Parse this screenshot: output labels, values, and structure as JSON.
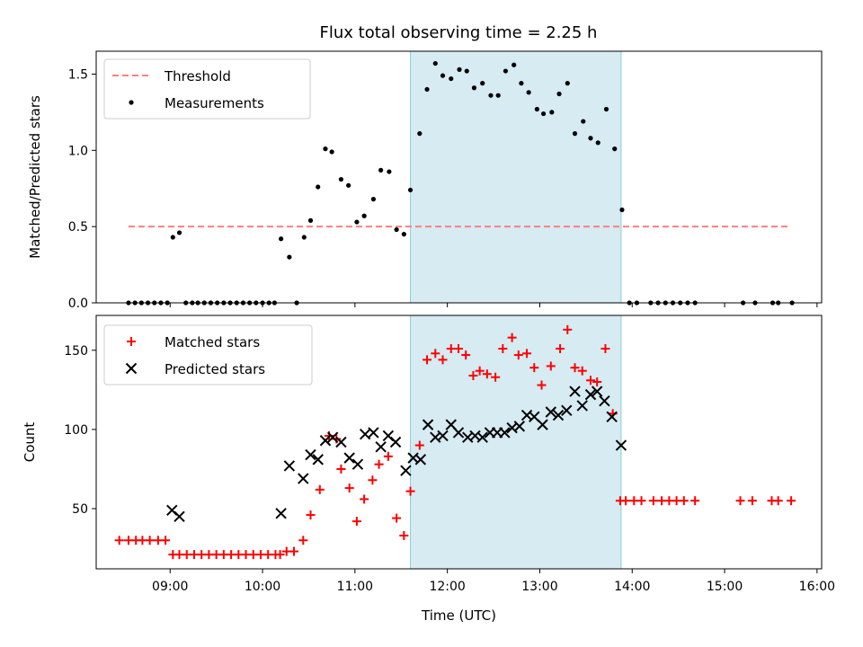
{
  "title": "Flux total observing time = 2.25 h",
  "colors": {
    "threshold": "#ff7f7f",
    "measurement": "#000000",
    "matched": "#ff0000",
    "predicted": "#000000",
    "shade": "#add8e6"
  },
  "chart_data": [
    {
      "type": "scatter",
      "ylabel": "Matched/Predicted stars",
      "xlim": [
        8.2,
        16.05
      ],
      "ylim": [
        0,
        1.65
      ],
      "yticks": [
        0.0,
        0.5,
        1.0,
        1.5
      ],
      "ytick_labels": [
        "0.0",
        "0.5",
        "1.0",
        "1.5"
      ],
      "shaded_span": [
        11.6,
        13.88
      ],
      "legend": [
        "Threshold",
        "Measurements"
      ],
      "legend_position": "top-left",
      "threshold": {
        "name": "Threshold",
        "x_range": [
          8.55,
          15.7
        ],
        "value": 0.5
      },
      "series": [
        {
          "name": "Measurements",
          "points": [
            [
              8.55,
              0
            ],
            [
              8.62,
              0
            ],
            [
              8.69,
              0
            ],
            [
              8.76,
              0
            ],
            [
              8.83,
              0
            ],
            [
              8.9,
              0
            ],
            [
              8.97,
              0
            ],
            [
              9.03,
              0.43
            ],
            [
              9.1,
              0.46
            ],
            [
              9.17,
              0
            ],
            [
              9.24,
              0
            ],
            [
              9.3,
              0
            ],
            [
              9.37,
              0
            ],
            [
              9.44,
              0
            ],
            [
              9.51,
              0
            ],
            [
              9.58,
              0
            ],
            [
              9.65,
              0
            ],
            [
              9.72,
              0
            ],
            [
              9.79,
              0
            ],
            [
              9.86,
              0
            ],
            [
              9.93,
              0
            ],
            [
              10.0,
              0
            ],
            [
              10.07,
              0
            ],
            [
              10.13,
              0
            ],
            [
              10.2,
              0.42
            ],
            [
              10.29,
              0.3
            ],
            [
              10.37,
              0
            ],
            [
              10.45,
              0.43
            ],
            [
              10.52,
              0.54
            ],
            [
              10.6,
              0.76
            ],
            [
              10.68,
              1.01
            ],
            [
              10.75,
              0.99
            ],
            [
              10.85,
              0.81
            ],
            [
              10.93,
              0.77
            ],
            [
              11.02,
              0.53
            ],
            [
              11.1,
              0.57
            ],
            [
              11.2,
              0.68
            ],
            [
              11.28,
              0.87
            ],
            [
              11.37,
              0.86
            ],
            [
              11.45,
              0.48
            ],
            [
              11.53,
              0.45
            ],
            [
              11.6,
              0.74
            ],
            [
              11.7,
              1.11
            ],
            [
              11.78,
              1.4
            ],
            [
              11.87,
              1.57
            ],
            [
              11.95,
              1.49
            ],
            [
              12.04,
              1.47
            ],
            [
              12.13,
              1.53
            ],
            [
              12.21,
              1.52
            ],
            [
              12.29,
              1.41
            ],
            [
              12.38,
              1.44
            ],
            [
              12.47,
              1.36
            ],
            [
              12.55,
              1.36
            ],
            [
              12.63,
              1.52
            ],
            [
              12.72,
              1.56
            ],
            [
              12.8,
              1.44
            ],
            [
              12.88,
              1.38
            ],
            [
              12.97,
              1.27
            ],
            [
              13.04,
              1.24
            ],
            [
              13.13,
              1.25
            ],
            [
              13.21,
              1.37
            ],
            [
              13.3,
              1.44
            ],
            [
              13.38,
              1.11
            ],
            [
              13.47,
              1.19
            ],
            [
              13.55,
              1.08
            ],
            [
              13.63,
              1.05
            ],
            [
              13.72,
              1.27
            ],
            [
              13.81,
              1.01
            ],
            [
              13.89,
              0.61
            ],
            [
              13.97,
              0
            ],
            [
              14.05,
              0
            ],
            [
              14.2,
              0
            ],
            [
              14.28,
              0
            ],
            [
              14.36,
              0
            ],
            [
              14.44,
              0
            ],
            [
              14.52,
              0
            ],
            [
              14.6,
              0
            ],
            [
              14.68,
              0
            ],
            [
              15.2,
              0
            ],
            [
              15.33,
              0
            ],
            [
              15.52,
              0
            ],
            [
              15.58,
              0
            ],
            [
              15.73,
              0
            ]
          ]
        }
      ]
    },
    {
      "type": "scatter",
      "ylabel": "Count",
      "xlabel": "Time (UTC)",
      "xlim": [
        8.2,
        16.05
      ],
      "ylim": [
        12,
        172
      ],
      "yticks": [
        50,
        100,
        150
      ],
      "ytick_labels": [
        "50",
        "100",
        "150"
      ],
      "xticks": [
        9,
        10,
        11,
        12,
        13,
        14,
        15,
        16
      ],
      "xtick_labels": [
        "09:00",
        "10:00",
        "11:00",
        "12:00",
        "13:00",
        "14:00",
        "15:00",
        "16:00"
      ],
      "shaded_span": [
        11.6,
        13.88
      ],
      "legend": [
        "Matched stars",
        "Predicted stars"
      ],
      "legend_position": "top-left",
      "series": [
        {
          "name": "Matched stars",
          "marker": "plus",
          "points": [
            [
              8.45,
              30
            ],
            [
              8.55,
              30
            ],
            [
              8.63,
              30
            ],
            [
              8.7,
              30
            ],
            [
              8.78,
              30
            ],
            [
              8.87,
              30
            ],
            [
              8.95,
              30
            ],
            [
              9.03,
              21
            ],
            [
              9.1,
              21
            ],
            [
              9.18,
              21
            ],
            [
              9.26,
              21
            ],
            [
              9.34,
              21
            ],
            [
              9.42,
              21
            ],
            [
              9.5,
              21
            ],
            [
              9.58,
              21
            ],
            [
              9.66,
              21
            ],
            [
              9.74,
              21
            ],
            [
              9.82,
              21
            ],
            [
              9.9,
              21
            ],
            [
              9.98,
              21
            ],
            [
              10.06,
              21
            ],
            [
              10.14,
              21
            ],
            [
              10.19,
              21
            ],
            [
              10.26,
              23
            ],
            [
              10.34,
              23
            ],
            [
              10.44,
              30
            ],
            [
              10.52,
              46
            ],
            [
              10.62,
              62
            ],
            [
              10.72,
              96
            ],
            [
              10.8,
              94
            ],
            [
              10.85,
              75
            ],
            [
              10.94,
              63
            ],
            [
              11.02,
              42
            ],
            [
              11.1,
              56
            ],
            [
              11.19,
              68
            ],
            [
              11.26,
              78
            ],
            [
              11.36,
              83
            ],
            [
              11.45,
              44
            ],
            [
              11.53,
              33
            ],
            [
              11.6,
              61
            ],
            [
              11.7,
              90
            ],
            [
              11.78,
              144
            ],
            [
              11.87,
              148
            ],
            [
              11.95,
              144
            ],
            [
              12.04,
              151
            ],
            [
              12.12,
              151
            ],
            [
              12.2,
              147
            ],
            [
              12.28,
              134
            ],
            [
              12.35,
              137
            ],
            [
              12.43,
              135
            ],
            [
              12.52,
              133
            ],
            [
              12.6,
              151
            ],
            [
              12.7,
              158
            ],
            [
              12.77,
              147
            ],
            [
              12.86,
              148
            ],
            [
              12.94,
              139
            ],
            [
              13.02,
              128
            ],
            [
              13.12,
              140
            ],
            [
              13.22,
              151
            ],
            [
              13.3,
              163
            ],
            [
              13.38,
              139
            ],
            [
              13.46,
              137
            ],
            [
              13.55,
              131
            ],
            [
              13.62,
              130
            ],
            [
              13.71,
              151
            ],
            [
              13.79,
              110
            ],
            [
              13.87,
              55
            ],
            [
              13.93,
              55
            ],
            [
              14.02,
              55
            ],
            [
              14.1,
              55
            ],
            [
              14.23,
              55
            ],
            [
              14.32,
              55
            ],
            [
              14.4,
              55
            ],
            [
              14.48,
              55
            ],
            [
              14.56,
              55
            ],
            [
              14.68,
              55
            ],
            [
              15.17,
              55
            ],
            [
              15.3,
              55
            ],
            [
              15.51,
              55
            ],
            [
              15.58,
              55
            ],
            [
              15.72,
              55
            ]
          ]
        },
        {
          "name": "Predicted stars",
          "marker": "x",
          "points": [
            [
              9.02,
              49
            ],
            [
              9.1,
              45
            ],
            [
              10.2,
              47
            ],
            [
              10.29,
              77
            ],
            [
              10.44,
              69
            ],
            [
              10.52,
              84
            ],
            [
              10.6,
              81
            ],
            [
              10.68,
              93
            ],
            [
              10.76,
              95
            ],
            [
              10.85,
              92
            ],
            [
              10.94,
              82
            ],
            [
              11.03,
              78
            ],
            [
              11.11,
              97
            ],
            [
              11.2,
              98
            ],
            [
              11.28,
              89
            ],
            [
              11.36,
              96
            ],
            [
              11.44,
              92
            ],
            [
              11.55,
              74
            ],
            [
              11.63,
              82
            ],
            [
              11.71,
              81
            ],
            [
              11.79,
              103
            ],
            [
              11.87,
              95
            ],
            [
              11.95,
              96
            ],
            [
              12.04,
              103
            ],
            [
              12.12,
              98
            ],
            [
              12.22,
              95
            ],
            [
              12.3,
              96
            ],
            [
              12.38,
              95
            ],
            [
              12.46,
              98
            ],
            [
              12.54,
              98
            ],
            [
              12.62,
              98
            ],
            [
              12.7,
              101
            ],
            [
              12.78,
              102
            ],
            [
              12.86,
              109
            ],
            [
              12.94,
              108
            ],
            [
              13.03,
              103
            ],
            [
              13.12,
              111
            ],
            [
              13.2,
              109
            ],
            [
              13.29,
              112
            ],
            [
              13.38,
              124
            ],
            [
              13.46,
              115
            ],
            [
              13.55,
              122
            ],
            [
              13.62,
              124
            ],
            [
              13.7,
              118
            ],
            [
              13.78,
              108
            ],
            [
              13.88,
              90
            ]
          ]
        }
      ]
    }
  ]
}
